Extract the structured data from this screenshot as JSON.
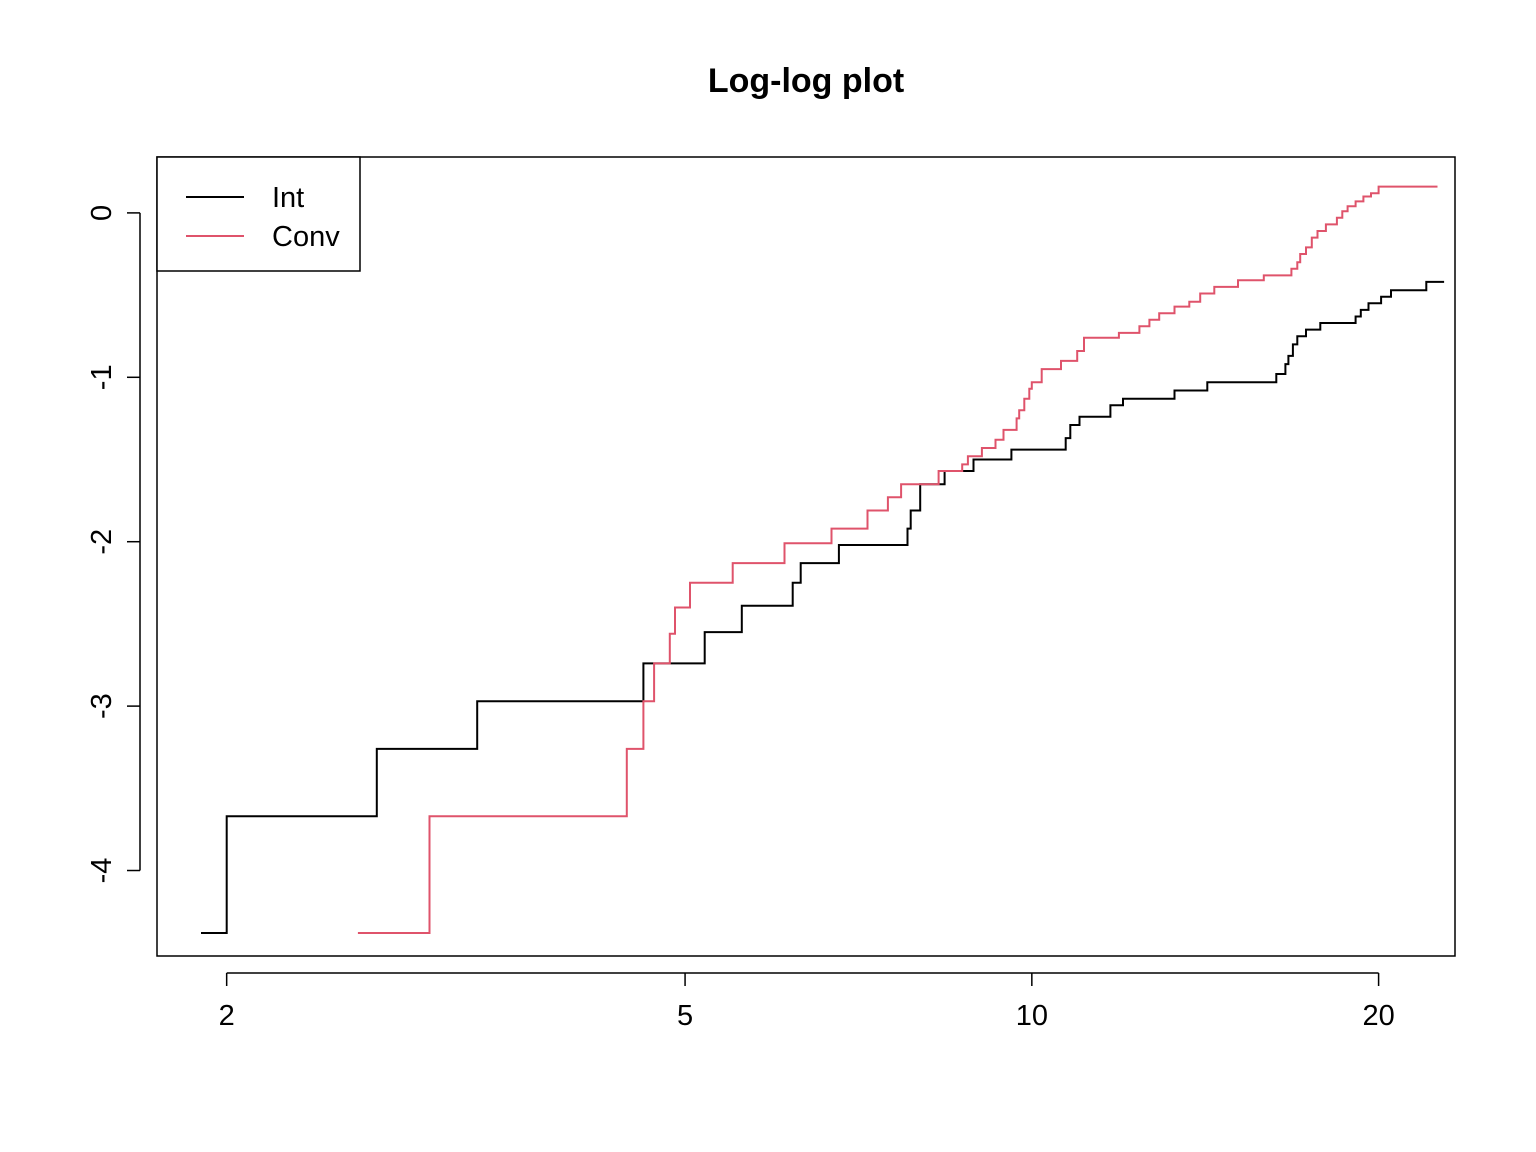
{
  "chart_data": {
    "type": "line",
    "step": true,
    "title": "Log-log plot",
    "xlabel": "",
    "ylabel": "",
    "x_scale": "log",
    "xlim": [
      1.74,
      23.3
    ],
    "ylim": [
      -4.52,
      0.34
    ],
    "x_ticks": [
      2,
      5,
      10,
      20
    ],
    "y_ticks": [
      -4,
      -3,
      -2,
      -1,
      0
    ],
    "grid": false,
    "legend_position": "top-left",
    "series": [
      {
        "name": "Int",
        "color": "#000000",
        "points": [
          [
            1.9,
            -4.38
          ],
          [
            2.0,
            -3.67
          ],
          [
            2.7,
            -3.26
          ],
          [
            3.3,
            -2.97
          ],
          [
            4.6,
            -2.74
          ],
          [
            5.2,
            -2.55
          ],
          [
            5.6,
            -2.39
          ],
          [
            6.2,
            -2.25
          ],
          [
            6.3,
            -2.13
          ],
          [
            6.8,
            -2.02
          ],
          [
            7.8,
            -1.92
          ],
          [
            7.85,
            -1.81
          ],
          [
            8.0,
            -1.65
          ],
          [
            8.4,
            -1.57
          ],
          [
            8.9,
            -1.5
          ],
          [
            9.6,
            -1.44
          ],
          [
            10.7,
            -1.37
          ],
          [
            10.8,
            -1.29
          ],
          [
            11.0,
            -1.24
          ],
          [
            11.7,
            -1.17
          ],
          [
            12.0,
            -1.13
          ],
          [
            13.3,
            -1.08
          ],
          [
            14.2,
            -1.03
          ],
          [
            16.3,
            -0.98
          ],
          [
            16.6,
            -0.92
          ],
          [
            16.7,
            -0.87
          ],
          [
            16.85,
            -0.8
          ],
          [
            17.0,
            -0.75
          ],
          [
            17.3,
            -0.71
          ],
          [
            17.8,
            -0.67
          ],
          [
            19.1,
            -0.63
          ],
          [
            19.3,
            -0.59
          ],
          [
            19.6,
            -0.55
          ],
          [
            20.1,
            -0.51
          ],
          [
            20.5,
            -0.47
          ],
          [
            22.0,
            -0.42
          ],
          [
            22.8,
            -0.42
          ]
        ]
      },
      {
        "name": "Conv",
        "color": "#DF536B",
        "points": [
          [
            2.6,
            -4.38
          ],
          [
            3.0,
            -3.67
          ],
          [
            4.45,
            -3.26
          ],
          [
            4.6,
            -2.97
          ],
          [
            4.7,
            -2.74
          ],
          [
            4.85,
            -2.56
          ],
          [
            4.9,
            -2.4
          ],
          [
            5.05,
            -2.25
          ],
          [
            5.5,
            -2.13
          ],
          [
            6.1,
            -2.01
          ],
          [
            6.7,
            -1.92
          ],
          [
            7.2,
            -1.81
          ],
          [
            7.5,
            -1.73
          ],
          [
            7.7,
            -1.65
          ],
          [
            8.3,
            -1.57
          ],
          [
            8.7,
            -1.53
          ],
          [
            8.8,
            -1.48
          ],
          [
            9.05,
            -1.43
          ],
          [
            9.3,
            -1.38
          ],
          [
            9.45,
            -1.32
          ],
          [
            9.7,
            -1.25
          ],
          [
            9.75,
            -1.2
          ],
          [
            9.85,
            -1.13
          ],
          [
            9.95,
            -1.07
          ],
          [
            10.0,
            -1.03
          ],
          [
            10.2,
            -0.95
          ],
          [
            10.6,
            -0.9
          ],
          [
            10.95,
            -0.84
          ],
          [
            11.1,
            -0.76
          ],
          [
            11.9,
            -0.73
          ],
          [
            12.4,
            -0.69
          ],
          [
            12.65,
            -0.65
          ],
          [
            12.9,
            -0.61
          ],
          [
            13.3,
            -0.57
          ],
          [
            13.7,
            -0.54
          ],
          [
            14.0,
            -0.49
          ],
          [
            14.4,
            -0.45
          ],
          [
            15.1,
            -0.41
          ],
          [
            15.9,
            -0.38
          ],
          [
            16.8,
            -0.34
          ],
          [
            17.0,
            -0.3
          ],
          [
            17.1,
            -0.25
          ],
          [
            17.3,
            -0.21
          ],
          [
            17.5,
            -0.15
          ],
          [
            17.7,
            -0.11
          ],
          [
            18.0,
            -0.07
          ],
          [
            18.4,
            -0.03
          ],
          [
            18.6,
            0.01
          ],
          [
            18.8,
            0.04
          ],
          [
            19.1,
            0.07
          ],
          [
            19.4,
            0.1
          ],
          [
            19.7,
            0.12
          ],
          [
            20.0,
            0.16
          ],
          [
            22.5,
            0.16
          ]
        ]
      }
    ]
  }
}
